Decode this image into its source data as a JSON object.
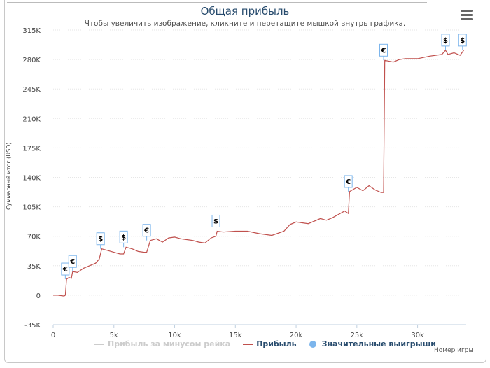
{
  "title": "Общая прибыль",
  "subtitle": "Чтобы увеличить изображение, кликните и перетащите мышкой внутрь графика.",
  "menu_icon": "hamburger-menu-icon",
  "chart_data": {
    "type": "line",
    "ylabel": "Суммарный итог (USD)",
    "xlabel": "Номер игры",
    "xlim": [
      0,
      34000
    ],
    "ylim": [
      -35000,
      315000
    ],
    "x_ticks": [
      0,
      5000,
      10000,
      15000,
      20000,
      25000,
      30000
    ],
    "x_tick_labels": [
      "0",
      "5k",
      "10k",
      "15k",
      "20k",
      "25k",
      "30k"
    ],
    "y_ticks": [
      -35000,
      0,
      35000,
      70000,
      105000,
      140000,
      175000,
      210000,
      245000,
      280000,
      315000
    ],
    "y_tick_labels": [
      "-35K",
      "0",
      "35K",
      "70K",
      "105K",
      "140K",
      "175K",
      "210K",
      "245K",
      "280K",
      "315K"
    ],
    "series": [
      {
        "name": "Прибыль за минусом рейка",
        "color": "#cccccc",
        "visible": false,
        "x": [],
        "y": []
      },
      {
        "name": "Прибыль",
        "color": "#c0504d",
        "visible": true,
        "x": [
          0,
          400,
          900,
          1000,
          1100,
          1300,
          1500,
          1600,
          2000,
          2500,
          3000,
          3500,
          3800,
          4000,
          4500,
          5000,
          5500,
          5800,
          6000,
          6500,
          7000,
          7500,
          7700,
          8000,
          8500,
          9000,
          9500,
          10000,
          10500,
          11000,
          11500,
          12000,
          12500,
          13000,
          13400,
          13500,
          14000,
          15000,
          16000,
          17000,
          18000,
          19000,
          19500,
          20000,
          21000,
          22000,
          22500,
          23000,
          24000,
          24300,
          24400,
          25000,
          25500,
          26000,
          26500,
          27000,
          27200,
          27300,
          28000,
          28500,
          29000,
          30000,
          31000,
          32000,
          32300,
          32500,
          33000,
          33500,
          33800
        ],
        "y": [
          0,
          0,
          -1000,
          0,
          19000,
          21000,
          20000,
          28000,
          27000,
          32000,
          35000,
          38000,
          43000,
          55000,
          53000,
          51000,
          49000,
          49000,
          57000,
          55000,
          52000,
          51000,
          51000,
          65000,
          67000,
          63000,
          68000,
          69000,
          67000,
          66000,
          65000,
          63000,
          62000,
          68000,
          70000,
          76000,
          75000,
          76000,
          76000,
          73000,
          71000,
          76000,
          84000,
          87000,
          85000,
          91000,
          89000,
          92000,
          100000,
          97000,
          123000,
          128000,
          124000,
          130000,
          125000,
          122000,
          122000,
          279000,
          277000,
          280000,
          281000,
          281000,
          284000,
          286000,
          291000,
          286000,
          288000,
          285000,
          291000
        ]
      }
    ],
    "significant_wins": {
      "name": "Значительные выигрыши",
      "color": "#7cb5ec",
      "markers": [
        {
          "x": 1000,
          "y": 19000,
          "symbol": "€"
        },
        {
          "x": 1600,
          "y": 28000,
          "symbol": "€"
        },
        {
          "x": 3900,
          "y": 55000,
          "symbol": "$"
        },
        {
          "x": 5800,
          "y": 57000,
          "symbol": "$"
        },
        {
          "x": 7700,
          "y": 65000,
          "symbol": "€"
        },
        {
          "x": 13400,
          "y": 76000,
          "symbol": "$"
        },
        {
          "x": 24300,
          "y": 123000,
          "symbol": "€"
        },
        {
          "x": 27200,
          "y": 279000,
          "symbol": "€"
        },
        {
          "x": 32300,
          "y": 291000,
          "symbol": "$"
        },
        {
          "x": 33700,
          "y": 291000,
          "symbol": "$"
        }
      ]
    },
    "grid": true,
    "legend_position": "bottom"
  }
}
